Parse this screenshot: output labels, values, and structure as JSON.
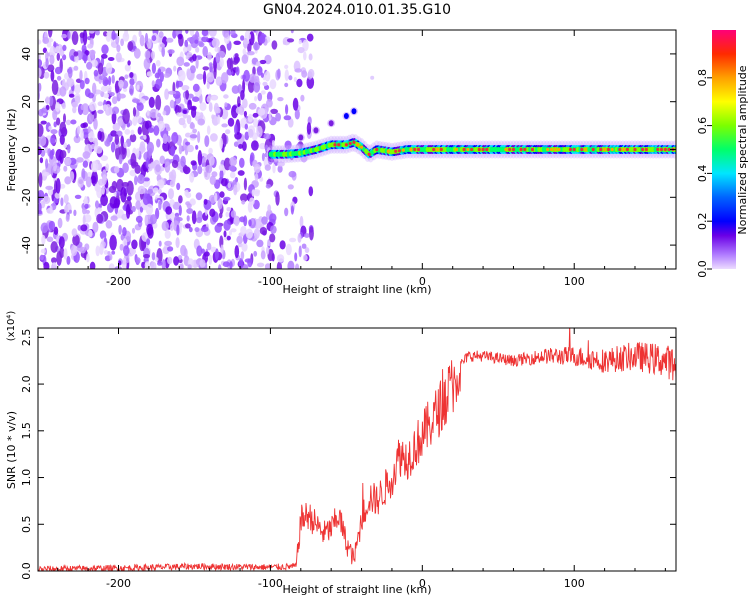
{
  "title": "GN04.2024.010.01.35.G10",
  "colors": {
    "background": "#ffffff",
    "snr_line": "#ee3333",
    "spectral_cloud": "#7a1fe0",
    "frequency_trace": "#00e070",
    "frequency_trace_core": "#e8303a"
  },
  "chart_data": [
    {
      "type": "heatmap",
      "name": "spectrogram",
      "xlabel": "Height of straight line (km)",
      "ylabel": "Frequency (Hz)",
      "xlim": [
        -253,
        167
      ],
      "ylim": [
        -50,
        50
      ],
      "x_ticks": [
        -200,
        -100,
        0,
        100
      ],
      "y_ticks": [
        -40,
        -20,
        0,
        20,
        40
      ],
      "grid": false,
      "colorbar": {
        "label": "Normalized spectral amplitude",
        "range": [
          0.0,
          1.0
        ],
        "ticks": [
          "0.0",
          "0.2",
          "0.4",
          "0.6",
          "0.8"
        ],
        "colormap": [
          "#e8d4ff",
          "#a060ff",
          "#5a00e0",
          "#0000ff",
          "#0060ff",
          "#00e0ff",
          "#00ff60",
          "#a0ff00",
          "#ffff00",
          "#ff9900",
          "#ff2000",
          "#ff0080"
        ]
      },
      "noise_region": {
        "x_range": [
          -253,
          -85
        ],
        "freq_range": [
          -50,
          50
        ],
        "amplitude": "low (0.05–0.3)"
      },
      "trace": {
        "x": [
          -100,
          -90,
          -80,
          -70,
          -60,
          -50,
          -45,
          -40,
          -35,
          -30,
          -20,
          -10,
          0,
          20,
          50,
          80,
          110,
          140,
          167
        ],
        "freq": [
          -2,
          -2,
          -1.5,
          0,
          2,
          2,
          3,
          1,
          -2,
          0,
          -1,
          0,
          0,
          0,
          0,
          0,
          0,
          0,
          0
        ]
      },
      "branch": {
        "x": [
          -80,
          -70,
          -60,
          -50,
          -45
        ],
        "freq": [
          5,
          8,
          11,
          14,
          16
        ]
      },
      "isolated_points": [
        {
          "x": -33,
          "freq": 30
        }
      ]
    },
    {
      "type": "line",
      "name": "snr",
      "xlabel": "Height of straight line (km)",
      "ylabel": "SNR (10 * v/v)",
      "y_multiplier": "(x10⁴)",
      "xlim": [
        -253,
        167
      ],
      "ylim": [
        0,
        2.6
      ],
      "x_ticks": [
        -200,
        -100,
        0,
        100
      ],
      "y_ticks": [
        "0.0",
        "0.5",
        "1.0",
        "1.5",
        "2.0",
        "2.5"
      ],
      "grid": false,
      "series": [
        {
          "color": "#ee3333",
          "x": [
            -253,
            -200,
            -150,
            -100,
            -83,
            -80,
            -75,
            -70,
            -65,
            -60,
            -55,
            -50,
            -45,
            -40,
            -35,
            -30,
            -20,
            -15,
            -10,
            0,
            10,
            20,
            25,
            30,
            40,
            60,
            80,
            100,
            120,
            140,
            160,
            167
          ],
          "y": [
            0.02,
            0.03,
            0.05,
            0.04,
            0.05,
            0.55,
            0.6,
            0.5,
            0.4,
            0.45,
            0.6,
            0.3,
            0.12,
            0.55,
            0.8,
            0.75,
            1.0,
            1.25,
            1.2,
            1.45,
            1.7,
            2.0,
            2.2,
            2.3,
            2.3,
            2.25,
            2.3,
            2.3,
            2.25,
            2.3,
            2.25,
            2.2
          ]
        }
      ]
    }
  ]
}
